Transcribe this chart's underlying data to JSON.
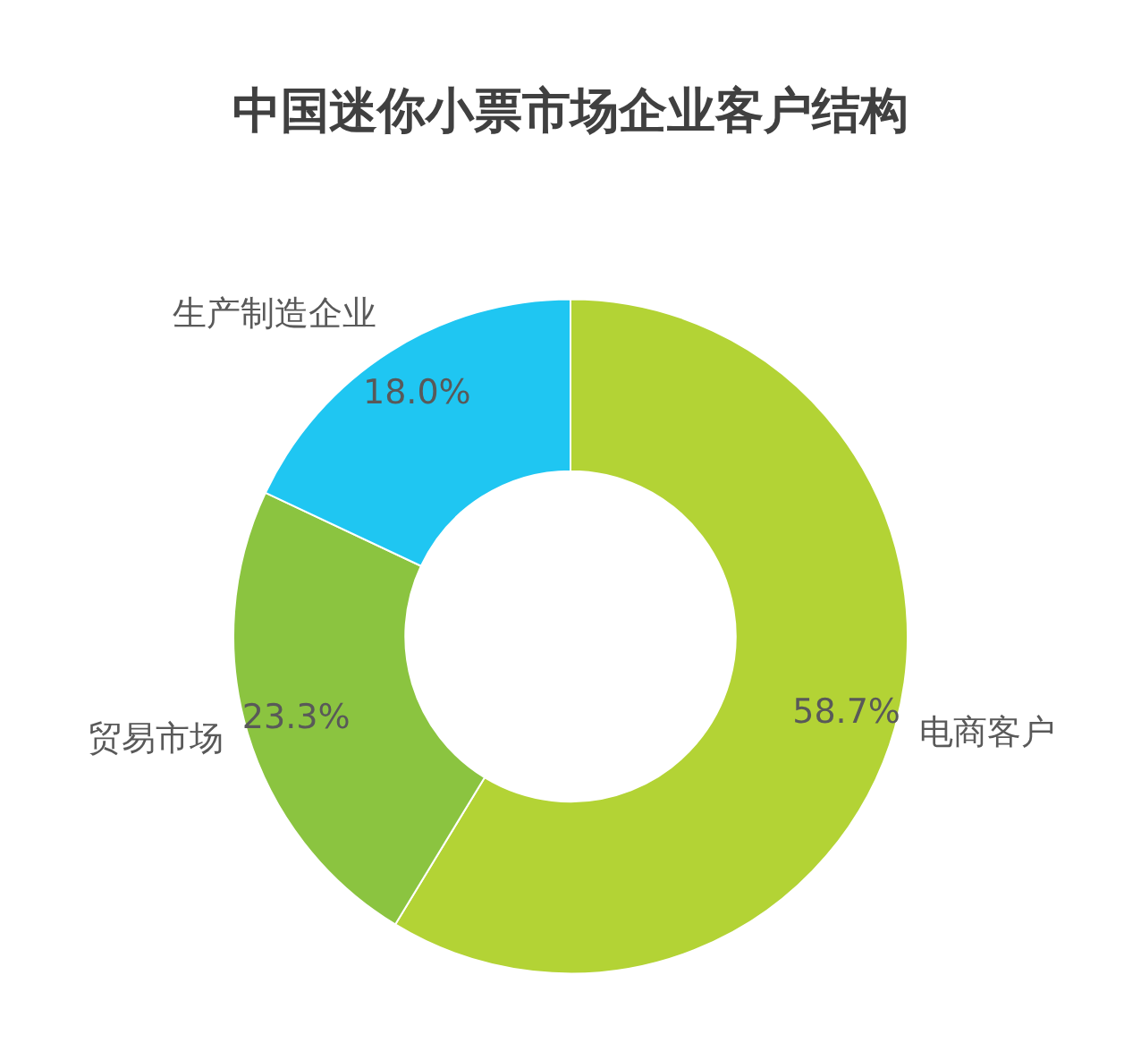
{
  "chart_data": {
    "type": "donut",
    "title": "中国迷你小票市场企业客户结构",
    "categories": [
      "电商客户",
      "贸易市场",
      "生产制造企业"
    ],
    "values": [
      58.7,
      23.3,
      18.0
    ],
    "colors": [
      "#b3d335",
      "#8bc440",
      "#1fc6f2"
    ],
    "value_labels": [
      "58.7%",
      "23.3%",
      "18.0%"
    ]
  }
}
